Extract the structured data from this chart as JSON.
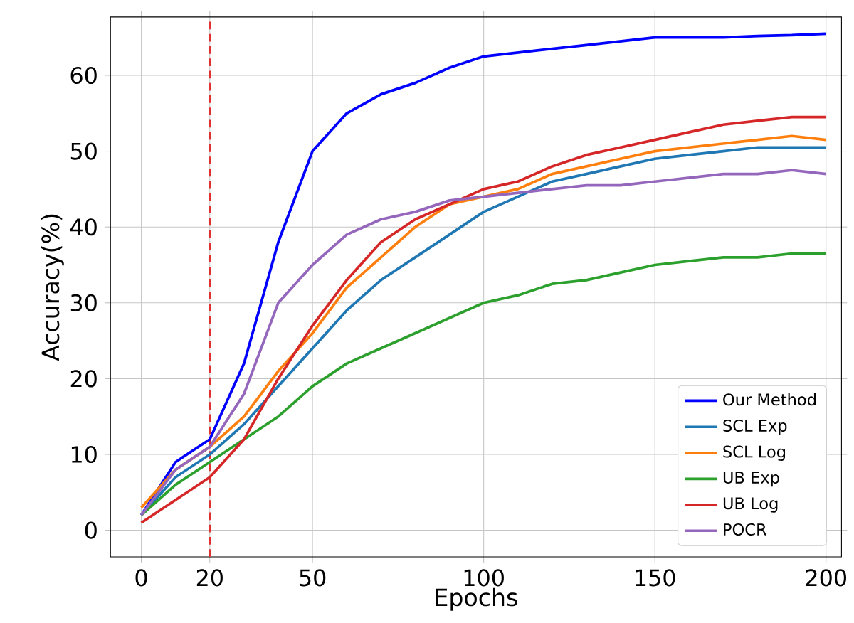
{
  "chart_data": {
    "type": "line",
    "xlabel": "Epochs",
    "ylabel": "Accuracy(%)",
    "x": [
      0,
      10,
      20,
      30,
      40,
      50,
      60,
      70,
      80,
      90,
      100,
      110,
      120,
      130,
      140,
      150,
      160,
      170,
      180,
      190,
      200
    ],
    "series": [
      {
        "name": "Our Method",
        "color": "#0000ff",
        "values": [
          2,
          9,
          12,
          22,
          38,
          50,
          55,
          57.5,
          59,
          61,
          62.5,
          63,
          63.5,
          64,
          64.5,
          65,
          65,
          65,
          65.2,
          65.3,
          65.5
        ]
      },
      {
        "name": "SCL Exp",
        "color": "#1f77b4",
        "values": [
          2,
          7,
          10,
          14,
          19,
          24,
          29,
          33,
          36,
          39,
          42,
          44,
          46,
          47,
          48,
          49,
          49.5,
          50,
          50.5,
          50.5,
          50.5
        ]
      },
      {
        "name": "SCL Log",
        "color": "#ff7f0e",
        "values": [
          3,
          8,
          11,
          15,
          21,
          26,
          32,
          36,
          40,
          43,
          44,
          45,
          47,
          48,
          49,
          50,
          50.5,
          51,
          51.5,
          52,
          51.5
        ]
      },
      {
        "name": "UB Exp",
        "color": "#2ca02c",
        "values": [
          2,
          6,
          9,
          12,
          15,
          19,
          22,
          24,
          26,
          28,
          30,
          31,
          32.5,
          33,
          34,
          35,
          35.5,
          36,
          36,
          36.5,
          36.5
        ]
      },
      {
        "name": "UB Log",
        "color": "#d62728",
        "values": [
          1,
          4,
          7,
          12,
          20,
          27,
          33,
          38,
          41,
          43,
          45,
          46,
          48,
          49.5,
          50.5,
          51.5,
          52.5,
          53.5,
          54,
          54.5,
          54.5
        ]
      },
      {
        "name": "POCR",
        "color": "#9467bd",
        "values": [
          2,
          8,
          11,
          18,
          30,
          35,
          39,
          41,
          42,
          43.5,
          44,
          44.5,
          45,
          45.5,
          45.5,
          46,
          46.5,
          47,
          47,
          47.5,
          47
        ]
      }
    ],
    "xlim": [
      -9,
      204.5
    ],
    "ylim": [
      -3.5,
      67.7
    ],
    "xticks": [
      0,
      20,
      50,
      100,
      150,
      200
    ],
    "yticks": [
      0,
      10,
      20,
      30,
      40,
      50,
      60
    ],
    "ref_lines": [
      {
        "axis": "x",
        "value": 20,
        "color": "#e03030",
        "line_style": "dashed"
      }
    ],
    "grid": true,
    "legend": "bottom right",
    "marker": "none",
    "line_style": "solid"
  }
}
